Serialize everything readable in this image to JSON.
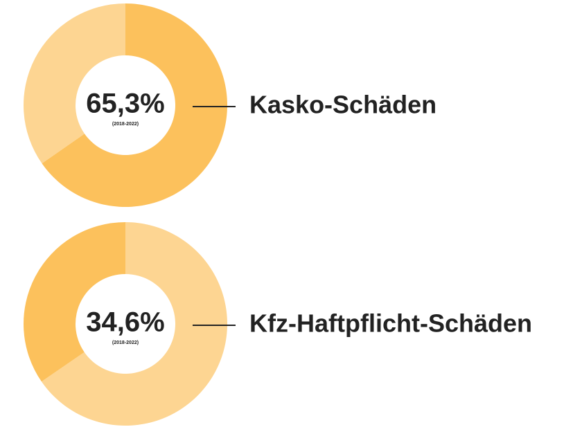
{
  "chart_data": [
    {
      "type": "pie",
      "donut": true,
      "values": [
        65.3,
        34.7
      ],
      "value_labels": [
        "65,3%",
        null
      ],
      "colors": [
        "#fcc15c",
        "#fdd592"
      ],
      "subtitle": "(2018-2022)",
      "label": "Kasko-Schäden"
    },
    {
      "type": "pie",
      "donut": true,
      "values": [
        65.4,
        34.6
      ],
      "value_labels": [
        null,
        "34,6%"
      ],
      "colors": [
        "#fdd592",
        "#fcc15c"
      ],
      "subtitle": "(2018-2022)",
      "label": "Kfz-Haftpflicht-Schäden"
    }
  ]
}
